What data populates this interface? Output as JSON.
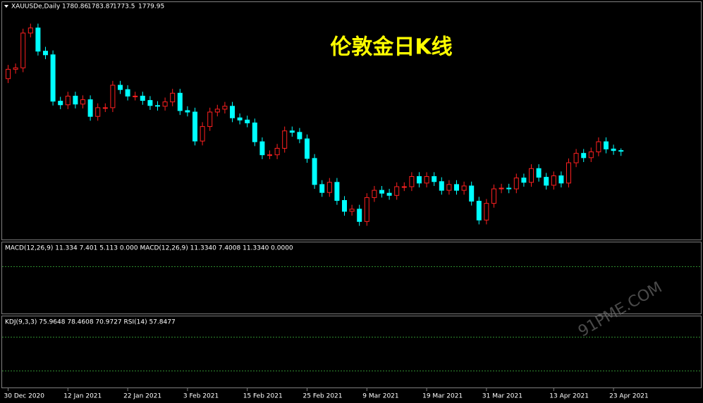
{
  "chart_data": {
    "type": "candlestick",
    "symbol": "XAUUSDe,Daily",
    "title": "伦敦金日K线",
    "categories": [
      "30 Dec 2020",
      null,
      null,
      null,
      null,
      null,
      null,
      null,
      "12 Jan 2021",
      null,
      null,
      null,
      null,
      null,
      null,
      null,
      "22 Jan 2021",
      null,
      null,
      null,
      null,
      null,
      null,
      null,
      "3 Feb 2021",
      null,
      null,
      null,
      null,
      null,
      null,
      null,
      "15 Feb 2021",
      null,
      null,
      null,
      null,
      null,
      null,
      null,
      "25 Feb 2021",
      null,
      null,
      null,
      null,
      null,
      null,
      null,
      "9 Mar 2021",
      null,
      null,
      null,
      null,
      null,
      null,
      null,
      "19 Mar 2021",
      null,
      null,
      null,
      null,
      null,
      null,
      null,
      "31 Mar 2021",
      null,
      null,
      null,
      null,
      null,
      null,
      null,
      null,
      "13 Apr 2021",
      null,
      null,
      null,
      null,
      null,
      null,
      null,
      "23 Apr 2021",
      null
    ],
    "open": [
      1880,
      1893,
      1895,
      1943,
      1950,
      1918,
      1913,
      1849,
      1844,
      1856,
      1845,
      1851,
      1828,
      1840,
      1840,
      1871,
      1865,
      1856,
      1856,
      1850,
      1843,
      1842,
      1848,
      1860,
      1836,
      1834,
      1794,
      1814,
      1834,
      1838,
      1842,
      1826,
      1823,
      1819,
      1793,
      1775,
      1775,
      1784,
      1808,
      1806,
      1797,
      1770,
      1734,
      1723,
      1737,
      1712,
      1697,
      1700,
      1683,
      1716,
      1726,
      1722,
      1719,
      1731,
      1731,
      1745,
      1736,
      1745,
      1738,
      1726,
      1734,
      1726,
      1732,
      1711,
      1685,
      1708,
      1728,
      1729,
      1728,
      1743,
      1737,
      1756,
      1744,
      1733,
      1746,
      1736,
      1764,
      1777,
      1771,
      1779,
      1793,
      1783,
      1780.86
    ],
    "high": [
      1899,
      1901,
      1949,
      1956,
      1956,
      1924,
      1919,
      1855,
      1862,
      1862,
      1857,
      1857,
      1846,
      1846,
      1877,
      1877,
      1871,
      1862,
      1862,
      1856,
      1849,
      1854,
      1866,
      1866,
      1842,
      1840,
      1820,
      1840,
      1844,
      1848,
      1848,
      1832,
      1829,
      1825,
      1799,
      1781,
      1790,
      1814,
      1814,
      1812,
      1803,
      1776,
      1740,
      1743,
      1743,
      1718,
      1706,
      1706,
      1722,
      1732,
      1732,
      1728,
      1737,
      1737,
      1751,
      1751,
      1751,
      1751,
      1744,
      1740,
      1740,
      1738,
      1738,
      1717,
      1714,
      1734,
      1735,
      1735,
      1749,
      1749,
      1762,
      1762,
      1750,
      1752,
      1752,
      1770,
      1783,
      1783,
      1785,
      1799,
      1799,
      1789,
      1783.87
    ],
    "low": [
      1874,
      1887,
      1889,
      1937,
      1912,
      1907,
      1843,
      1838,
      1838,
      1839,
      1839,
      1822,
      1822,
      1834,
      1834,
      1859,
      1850,
      1850,
      1844,
      1837,
      1836,
      1836,
      1842,
      1830,
      1828,
      1788,
      1788,
      1808,
      1828,
      1832,
      1820,
      1817,
      1813,
      1787,
      1769,
      1769,
      1769,
      1778,
      1800,
      1791,
      1764,
      1728,
      1717,
      1717,
      1706,
      1691,
      1691,
      1677,
      1677,
      1710,
      1716,
      1713,
      1713,
      1725,
      1725,
      1730,
      1730,
      1732,
      1720,
      1720,
      1720,
      1720,
      1705,
      1679,
      1679,
      1702,
      1722,
      1722,
      1722,
      1731,
      1731,
      1738,
      1727,
      1727,
      1730,
      1730,
      1758,
      1765,
      1765,
      1773,
      1777,
      1775,
      1773.5
    ],
    "close": [
      1893,
      1895,
      1943,
      1950,
      1918,
      1913,
      1849,
      1844,
      1856,
      1845,
      1851,
      1828,
      1840,
      1840,
      1871,
      1865,
      1856,
      1856,
      1850,
      1843,
      1842,
      1848,
      1860,
      1836,
      1834,
      1794,
      1814,
      1834,
      1838,
      1842,
      1826,
      1823,
      1819,
      1793,
      1775,
      1775,
      1784,
      1808,
      1806,
      1797,
      1770,
      1734,
      1723,
      1737,
      1712,
      1697,
      1700,
      1683,
      1716,
      1726,
      1722,
      1719,
      1731,
      1731,
      1745,
      1736,
      1745,
      1738,
      1726,
      1734,
      1726,
      1732,
      1711,
      1685,
      1708,
      1728,
      1729,
      1728,
      1743,
      1737,
      1756,
      1744,
      1733,
      1746,
      1736,
      1764,
      1777,
      1771,
      1779,
      1793,
      1783,
      1780.86,
      1779.95
    ],
    "up_color": "#ff2020",
    "down_color": "#00ffff",
    "ylim": [
      1660,
      1975
    ],
    "panels": [
      "MACD(12,26,9) 11.334 7.401 5.113 0.000 MACD(12,26,9) 11.3340 7.4008 11.3340 0.0000",
      "KDJ(9,3,3) 75.9648 78.4608 70.9727 RSI(14) 57.8477"
    ],
    "watermark": "91PME.COM"
  }
}
